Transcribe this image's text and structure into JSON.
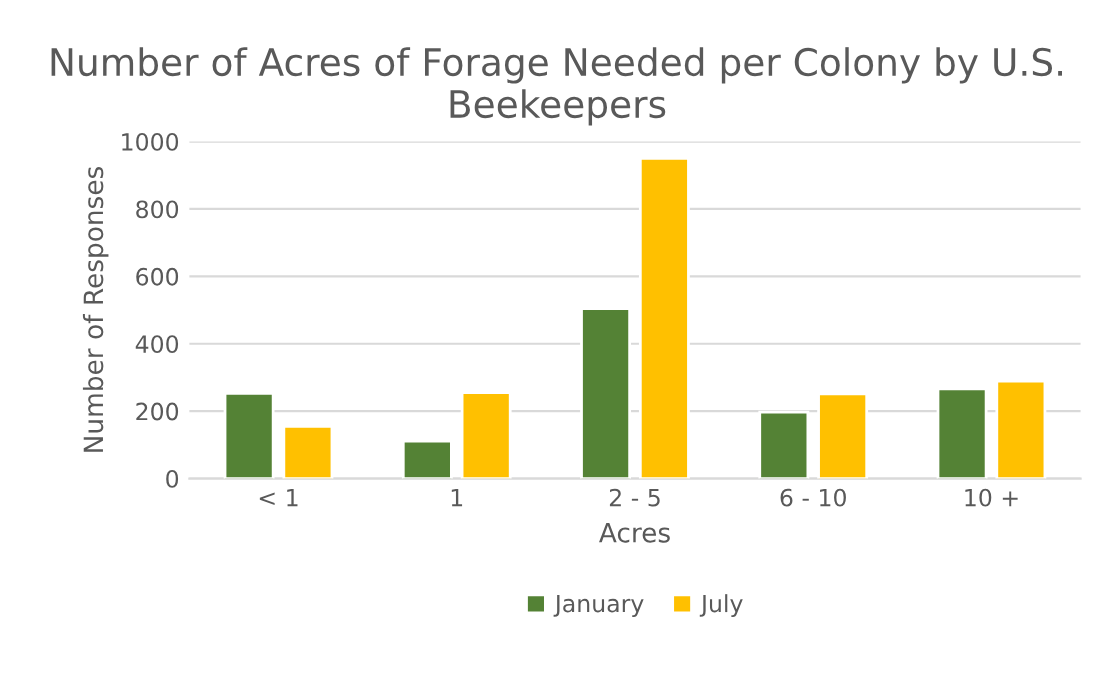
{
  "chart_data": {
    "type": "bar",
    "title": "Number of Acres of Forage Needed per Colony by U.S. Beekeepers",
    "xlabel": "Acres",
    "ylabel": "Number of Responses",
    "categories": [
      "< 1",
      "1",
      "2 - 5",
      "6 - 10",
      "10 +"
    ],
    "series": [
      {
        "name": "January",
        "color": "#548235",
        "values": [
          253,
          111,
          504,
          197,
          266
        ]
      },
      {
        "name": "July",
        "color": "#ffc000",
        "values": [
          155,
          255,
          950,
          251,
          289
        ]
      }
    ],
    "ylim": [
      0,
      1000
    ],
    "yticks": [
      0,
      200,
      400,
      600,
      800,
      1000
    ],
    "grid": "y",
    "legend": "bottom"
  }
}
